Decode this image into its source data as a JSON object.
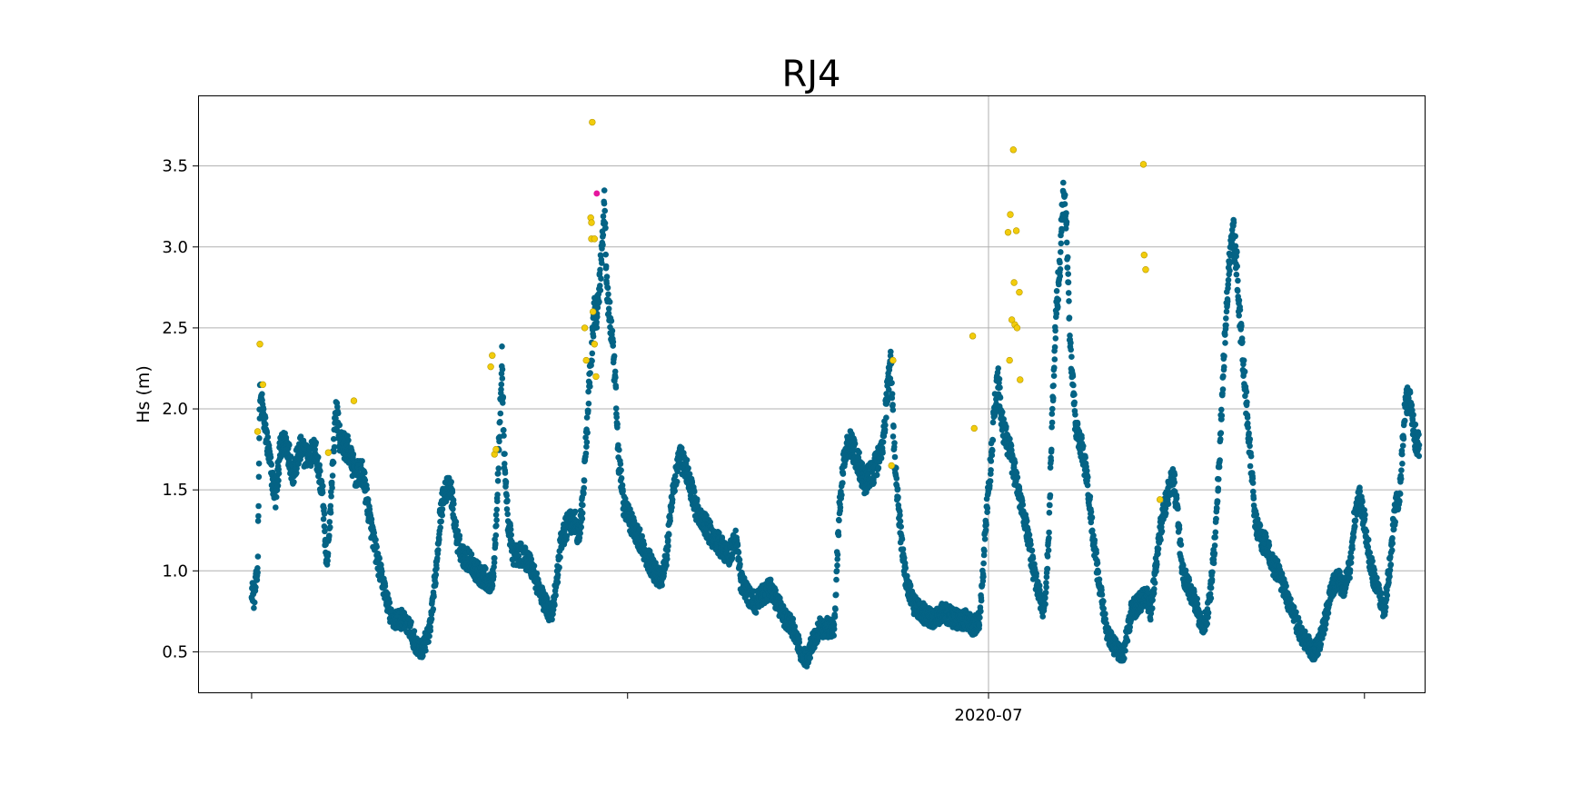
{
  "chart_data": {
    "type": "scatter",
    "title": "RJ4",
    "xlabel": "",
    "ylabel": "Hs (m)",
    "x_unit": "days",
    "xlim": [
      -7,
      156
    ],
    "ylim": [
      0.25,
      3.93
    ],
    "y_ticks": [
      0.5,
      1.0,
      1.5,
      2.0,
      2.5,
      3.0,
      3.5
    ],
    "y_tick_labels": [
      "0.5",
      "1.0",
      "1.5",
      "2.0",
      "2.5",
      "3.0",
      "3.5"
    ],
    "x_ticks": [
      0,
      50,
      98,
      148
    ],
    "x_tick_labels": [
      "",
      "",
      "2020-07",
      ""
    ],
    "x_grid_ticks": [
      98
    ],
    "grid": "y-major and x-labeled",
    "colors": {
      "main": "#046385",
      "flag_yellow": "#f2cc0c",
      "flag_magenta": "#e6169e",
      "grid": "#b0b0b0"
    },
    "anchors": [
      [
        0,
        0.9
      ],
      [
        0.3,
        0.83
      ],
      [
        0.8,
        1.0
      ],
      [
        1.1,
        2.1
      ],
      [
        1.6,
        1.95
      ],
      [
        2.2,
        1.75
      ],
      [
        2.8,
        1.55
      ],
      [
        3.2,
        1.45
      ],
      [
        3.8,
        1.75
      ],
      [
        4.6,
        1.8
      ],
      [
        5.5,
        1.6
      ],
      [
        6.5,
        1.75
      ],
      [
        7.5,
        1.7
      ],
      [
        8.5,
        1.75
      ],
      [
        9.5,
        1.45
      ],
      [
        10,
        1.0
      ],
      [
        10.3,
        1.2
      ],
      [
        10.6,
        1.5
      ],
      [
        11.2,
        2.0
      ],
      [
        11.8,
        1.8
      ],
      [
        12.8,
        1.75
      ],
      [
        13.8,
        1.6
      ],
      [
        14.8,
        1.6
      ],
      [
        15.8,
        1.3
      ],
      [
        16.8,
        1.05
      ],
      [
        17.6,
        0.9
      ],
      [
        18.6,
        0.7
      ],
      [
        20,
        0.7
      ],
      [
        21,
        0.65
      ],
      [
        21.8,
        0.55
      ],
      [
        22.4,
        0.5
      ],
      [
        23,
        0.55
      ],
      [
        23.8,
        0.65
      ],
      [
        24.6,
        1.05
      ],
      [
        25,
        1.3
      ],
      [
        25.6,
        1.5
      ],
      [
        26.5,
        1.5
      ],
      [
        27.3,
        1.2
      ],
      [
        28,
        1.1
      ],
      [
        29.3,
        1.05
      ],
      [
        29.8,
        1.0
      ],
      [
        31.2,
        0.95
      ],
      [
        31.7,
        0.9
      ],
      [
        32.2,
        1.0
      ],
      [
        32.6,
        1.4
      ],
      [
        33,
        1.9
      ],
      [
        33.3,
        2.3
      ],
      [
        33.6,
        1.7
      ],
      [
        34.1,
        1.3
      ],
      [
        34.8,
        1.1
      ],
      [
        36,
        1.1
      ],
      [
        37,
        1.05
      ],
      [
        37.8,
        0.95
      ],
      [
        38.5,
        0.85
      ],
      [
        39.5,
        0.75
      ],
      [
        40,
        0.75
      ],
      [
        40.6,
        0.95
      ],
      [
        41.2,
        1.2
      ],
      [
        42.2,
        1.3
      ],
      [
        43,
        1.3
      ],
      [
        43.5,
        1.2
      ],
      [
        44,
        1.4
      ],
      [
        44.5,
        1.8
      ],
      [
        45,
        2.2
      ],
      [
        45.6,
        2.6
      ],
      [
        46,
        2.6
      ],
      [
        46.5,
        2.9
      ],
      [
        46.9,
        3.3
      ],
      [
        47.3,
        2.7
      ],
      [
        47.8,
        2.5
      ],
      [
        48.3,
        2.2
      ],
      [
        48.8,
        1.7
      ],
      [
        49.5,
        1.4
      ],
      [
        50.5,
        1.3
      ],
      [
        51.5,
        1.2
      ],
      [
        52.5,
        1.1
      ],
      [
        53.5,
        1.0
      ],
      [
        54.5,
        0.95
      ],
      [
        55.2,
        1.1
      ],
      [
        56,
        1.5
      ],
      [
        57,
        1.7
      ],
      [
        58,
        1.6
      ],
      [
        59,
        1.4
      ],
      [
        60,
        1.3
      ],
      [
        61.5,
        1.2
      ],
      [
        62.5,
        1.15
      ],
      [
        63.5,
        1.1
      ],
      [
        64.5,
        1.2
      ],
      [
        65,
        0.95
      ],
      [
        66,
        0.85
      ],
      [
        67,
        0.8
      ],
      [
        68,
        0.85
      ],
      [
        69,
        0.9
      ],
      [
        70,
        0.8
      ],
      [
        71,
        0.7
      ],
      [
        72,
        0.65
      ],
      [
        73,
        0.5
      ],
      [
        73.8,
        0.45
      ],
      [
        74.5,
        0.55
      ],
      [
        75.5,
        0.65
      ],
      [
        76.5,
        0.65
      ],
      [
        77.5,
        0.65
      ],
      [
        77.8,
        1.0
      ],
      [
        78.2,
        1.4
      ],
      [
        78.8,
        1.7
      ],
      [
        79.5,
        1.8
      ],
      [
        80.5,
        1.7
      ],
      [
        81.5,
        1.55
      ],
      [
        82.5,
        1.6
      ],
      [
        83.5,
        1.7
      ],
      [
        84,
        1.8
      ],
      [
        84.5,
        2.1
      ],
      [
        85,
        2.3
      ],
      [
        85.4,
        1.8
      ],
      [
        85.8,
        1.5
      ],
      [
        86.4,
        1.2
      ],
      [
        87,
        0.95
      ],
      [
        88,
        0.8
      ],
      [
        89,
        0.75
      ],
      [
        90.5,
        0.7
      ],
      [
        92,
        0.75
      ],
      [
        93.5,
        0.7
      ],
      [
        95,
        0.7
      ],
      [
        96,
        0.65
      ],
      [
        96.8,
        0.7
      ],
      [
        97.3,
        1.0
      ],
      [
        97.6,
        1.3
      ],
      [
        98.2,
        1.6
      ],
      [
        98.7,
        1.95
      ],
      [
        99.3,
        2.2
      ],
      [
        99.8,
        1.9
      ],
      [
        100.5,
        1.8
      ],
      [
        101.5,
        1.6
      ],
      [
        102.5,
        1.4
      ],
      [
        103.3,
        1.2
      ],
      [
        104,
        1.0
      ],
      [
        104.8,
        0.85
      ],
      [
        105.2,
        0.75
      ],
      [
        105.6,
        0.85
      ],
      [
        106,
        1.2
      ],
      [
        106.5,
        2.0
      ],
      [
        107,
        2.6
      ],
      [
        107.5,
        2.9
      ],
      [
        107.9,
        3.3
      ],
      [
        108.3,
        3.2
      ],
      [
        108.7,
        2.6
      ],
      [
        109.1,
        2.2
      ],
      [
        109.6,
        1.9
      ],
      [
        110.2,
        1.8
      ],
      [
        111,
        1.6
      ],
      [
        111.5,
        1.4
      ],
      [
        112.2,
        1.1
      ],
      [
        112.8,
        0.9
      ],
      [
        113.3,
        0.75
      ],
      [
        113.8,
        0.6
      ],
      [
        114.5,
        0.55
      ],
      [
        115.2,
        0.5
      ],
      [
        116,
        0.5
      ],
      [
        117,
        0.75
      ],
      [
        118,
        0.8
      ],
      [
        119,
        0.85
      ],
      [
        119.6,
        0.75
      ],
      [
        120.2,
        1.0
      ],
      [
        121,
        1.3
      ],
      [
        122,
        1.5
      ],
      [
        122.6,
        1.6
      ],
      [
        123.2,
        1.3
      ],
      [
        123.8,
        1.0
      ],
      [
        124.6,
        0.9
      ],
      [
        125.6,
        0.8
      ],
      [
        126.4,
        0.65
      ],
      [
        127,
        0.7
      ],
      [
        127.6,
        0.9
      ],
      [
        128.3,
        1.3
      ],
      [
        128.9,
        1.9
      ],
      [
        129.4,
        2.4
      ],
      [
        130,
        2.9
      ],
      [
        130.5,
        3.1
      ],
      [
        131,
        2.9
      ],
      [
        131.5,
        2.5
      ],
      [
        132,
        2.2
      ],
      [
        132.5,
        1.9
      ],
      [
        133,
        1.6
      ],
      [
        133.5,
        1.3
      ],
      [
        134.2,
        1.2
      ],
      [
        135,
        1.15
      ],
      [
        135.7,
        1.05
      ],
      [
        136.4,
        1.0
      ],
      [
        137.2,
        0.9
      ],
      [
        138,
        0.8
      ],
      [
        138.8,
        0.7
      ],
      [
        139.6,
        0.6
      ],
      [
        140.4,
        0.55
      ],
      [
        141.2,
        0.5
      ],
      [
        142,
        0.55
      ],
      [
        142.8,
        0.7
      ],
      [
        143.6,
        0.9
      ],
      [
        144.4,
        0.95
      ],
      [
        145.2,
        0.9
      ],
      [
        146,
        1.0
      ],
      [
        146.6,
        1.3
      ],
      [
        147.3,
        1.45
      ],
      [
        148,
        1.3
      ],
      [
        148.6,
        1.1
      ],
      [
        149.3,
        0.95
      ],
      [
        150,
        0.85
      ],
      [
        150.7,
        0.75
      ],
      [
        151.4,
        1.05
      ],
      [
        152,
        1.35
      ],
      [
        152.7,
        1.5
      ],
      [
        153.4,
        2.0
      ],
      [
        154,
        2.1
      ],
      [
        154.6,
        1.85
      ],
      [
        155.3,
        1.75
      ]
    ],
    "flagged_yellow": [
      [
        1.1,
        2.4
      ],
      [
        1.5,
        2.15
      ],
      [
        0.8,
        1.86
      ],
      [
        10.2,
        1.73
      ],
      [
        13.6,
        2.05
      ],
      [
        31.8,
        2.26
      ],
      [
        32,
        2.33
      ],
      [
        32.3,
        1.72
      ],
      [
        32.5,
        1.75
      ],
      [
        44.3,
        2.5
      ],
      [
        44.5,
        2.3
      ],
      [
        45.3,
        3.77
      ],
      [
        45.1,
        3.18
      ],
      [
        45.2,
        3.15
      ],
      [
        45.2,
        3.05
      ],
      [
        45.4,
        2.6
      ],
      [
        45.6,
        2.4
      ],
      [
        45.8,
        2.2
      ],
      [
        45.6,
        3.05
      ],
      [
        85.3,
        2.3
      ],
      [
        85.1,
        1.65
      ],
      [
        95.9,
        2.45
      ],
      [
        96.1,
        1.88
      ],
      [
        100.6,
        3.09
      ],
      [
        100.9,
        3.2
      ],
      [
        101.1,
        2.55
      ],
      [
        101.3,
        3.6
      ],
      [
        101.4,
        2.78
      ],
      [
        101.5,
        2.52
      ],
      [
        101.7,
        3.1
      ],
      [
        101.8,
        2.5
      ],
      [
        102.1,
        2.72
      ],
      [
        102.2,
        2.18
      ],
      [
        100.8,
        2.3
      ],
      [
        118.6,
        3.51
      ],
      [
        118.7,
        2.95
      ],
      [
        118.9,
        2.86
      ],
      [
        120.8,
        1.44
      ]
    ],
    "flagged_magenta": [
      [
        45.9,
        3.33
      ]
    ]
  }
}
